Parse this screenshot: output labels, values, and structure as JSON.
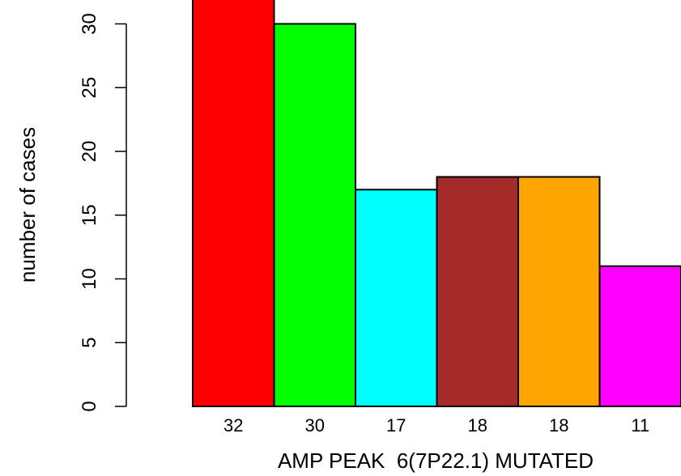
{
  "chart_data": {
    "type": "bar",
    "categories": [
      "32",
      "30",
      "17",
      "18",
      "18",
      "11"
    ],
    "values": [
      32,
      30,
      17,
      18,
      18,
      11
    ],
    "colors": [
      "#ff0000",
      "#00ff00",
      "#00ffff",
      "#a52a2a",
      "#ffa500",
      "#ff00ff"
    ],
    "title": "",
    "xlabel": "AMP PEAK  6(7P22.1) MUTATED",
    "ylabel": "number of cases",
    "ylim": [
      0,
      32
    ],
    "yticks": [
      0,
      5,
      10,
      15,
      20,
      25,
      30
    ],
    "grid": false,
    "legend": "none"
  }
}
